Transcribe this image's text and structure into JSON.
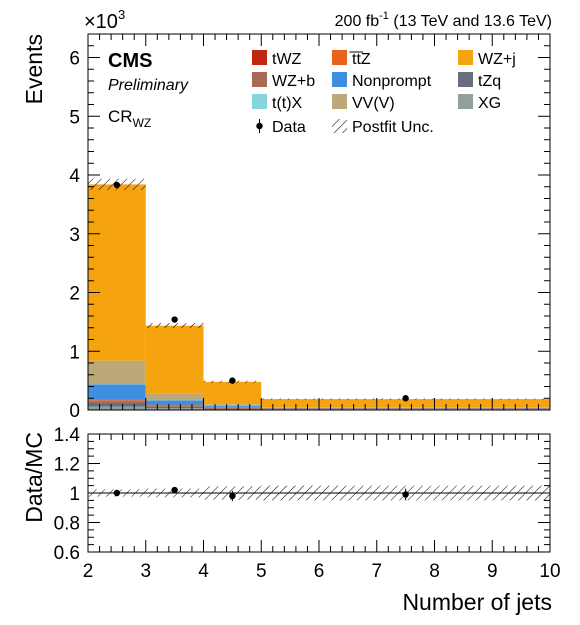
{
  "chart_data": [
    {
      "type": "bar",
      "stacked": true,
      "x_bin_edges": [
        2,
        3,
        4,
        5,
        10
      ],
      "ylabel": "Events",
      "scale_label": "×10",
      "scale_exp": "3",
      "ylim": [
        0,
        6.4
      ],
      "yticks": [
        0,
        1,
        2,
        3,
        4,
        5,
        6
      ],
      "y_unit_note": "values in units of 10^3 events",
      "lumi": {
        "pre": "200 fb",
        "sup": "-1",
        "post": " (13 TeV and 13.6 TeV)"
      },
      "cms_label": "CMS",
      "preliminary_label": "Preliminary",
      "region": {
        "main": "CR",
        "sub": "WZ"
      },
      "series": [
        {
          "name": "tWZ",
          "color": "#c0290f",
          "values": [
            0.005,
            0.003,
            0.002,
            0.001
          ]
        },
        {
          "name": "t̅t̅Z",
          "color": "#e8631a",
          "values": [
            0.03,
            0.02,
            0.015,
            0.01
          ]
        },
        {
          "name": "WZ+j",
          "color": "#f5a30f",
          "values": [
            3.0,
            1.15,
            0.38,
            0.14
          ]
        },
        {
          "name": "WZ+b",
          "color": "#a86a52",
          "values": [
            0.02,
            0.01,
            0.005,
            0.003
          ]
        },
        {
          "name": "Nonprompt",
          "color": "#3f8fe0",
          "values": [
            0.25,
            0.07,
            0.02,
            0.008
          ]
        },
        {
          "name": "tZq",
          "color": "#6a6e7c",
          "values": [
            0.07,
            0.03,
            0.015,
            0.008
          ]
        },
        {
          "name": "t(t)X",
          "color": "#87d4dc",
          "values": [
            0.005,
            0.003,
            0.002,
            0.001
          ]
        },
        {
          "name": "VV(V)",
          "color": "#bca97a",
          "values": [
            0.4,
            0.12,
            0.03,
            0.01
          ]
        },
        {
          "name": "XG",
          "color": "#92a09c",
          "values": [
            0.06,
            0.03,
            0.01,
            0.005
          ]
        }
      ],
      "stack_order": [
        "XG",
        "tZq",
        "tWZ",
        "t̅t̅Z",
        "WZ+b",
        "Nonprompt",
        "t(t)X",
        "VV(V)",
        "WZ+j"
      ],
      "data": {
        "name": "Data",
        "x": [
          2.5,
          3.5,
          4.5,
          7.5
        ],
        "y": [
          3.83,
          1.54,
          0.5,
          0.2
        ]
      },
      "uncertainty": {
        "name": "Postfit Unc.",
        "rel": [
          0.025,
          0.03,
          0.045,
          0.05
        ]
      },
      "legend": [
        "tWZ",
        "t̅t̅Z",
        "WZ+j",
        "WZ+b",
        "Nonprompt",
        "tZq",
        "t(t)X",
        "VV(V)",
        "XG",
        "Data",
        "Postfit Unc."
      ]
    },
    {
      "type": "scatter",
      "ylabel": "Data/MC",
      "xlabel": "Number of jets",
      "xlim": [
        2,
        10
      ],
      "ylim": [
        0.6,
        1.4
      ],
      "xticks": [
        2,
        3,
        4,
        5,
        6,
        7,
        8,
        9,
        10
      ],
      "yticks": [
        0.6,
        0.8,
        1,
        1.2,
        1.4
      ],
      "ytick_labels": [
        "0.6",
        "0.8",
        "1",
        "1.2",
        "1.4"
      ],
      "x": [
        2.5,
        3.5,
        4.5,
        7.5
      ],
      "y": [
        1.0,
        1.02,
        0.98,
        0.99
      ],
      "yerr": [
        0.01,
        0.018,
        0.035,
        0.04
      ],
      "band_rel": [
        0.025,
        0.03,
        0.045,
        0.05
      ]
    }
  ]
}
